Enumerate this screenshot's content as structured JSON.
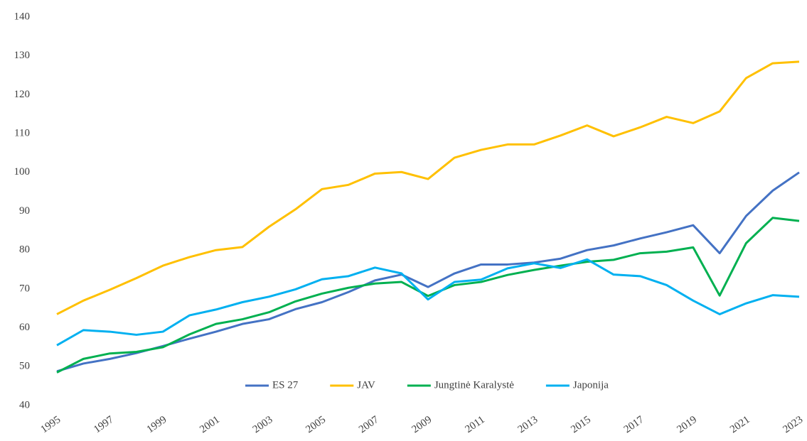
{
  "chart_data": {
    "type": "line",
    "x": [
      1995,
      1996,
      1997,
      1998,
      1999,
      2000,
      2001,
      2002,
      2003,
      2004,
      2005,
      2006,
      2007,
      2008,
      2009,
      2010,
      2011,
      2012,
      2013,
      2014,
      2015,
      2016,
      2017,
      2018,
      2019,
      2020,
      2021,
      2022,
      2023
    ],
    "series": [
      {
        "name": "ES 27",
        "color": "#4472c4",
        "values": [
          48.8,
          50.8,
          52,
          53.5,
          55.3,
          57.2,
          59,
          61,
          62.2,
          64.8,
          66.6,
          69.2,
          72.2,
          73.7,
          70.5,
          74,
          76.3,
          76.3,
          76.8,
          77.8,
          80,
          81.2,
          83,
          84.6,
          86.4,
          79.2,
          88.8,
          95.3,
          100
        ]
      },
      {
        "name": "JAV",
        "color": "#ffc000",
        "values": [
          63.5,
          67,
          69.8,
          72.8,
          76,
          78.2,
          80,
          80.8,
          86,
          90.5,
          95.7,
          96.8,
          99.7,
          100.1,
          98.3,
          103.8,
          105.8,
          107.2,
          107.2,
          109.5,
          112.1,
          109.3,
          111.6,
          114.3,
          112.7,
          115.7,
          124.3,
          128.1,
          128.5
        ]
      },
      {
        "name": "Jungtinė Karalystė",
        "color": "#00b050",
        "values": [
          48.5,
          52,
          53.4,
          53.8,
          55,
          58.3,
          61,
          62.2,
          64,
          66.8,
          68.8,
          70.3,
          71.4,
          71.8,
          68.2,
          71,
          71.8,
          73.6,
          74.9,
          76,
          77,
          77.5,
          79.2,
          79.6,
          80.7,
          68.3,
          81.8,
          88.3,
          87.5
        ]
      },
      {
        "name": "Japonija",
        "color": "#00b0f0",
        "values": [
          55.5,
          59.4,
          59,
          58.2,
          59,
          63.2,
          64.7,
          66.6,
          68,
          69.9,
          72.5,
          73.3,
          75.5,
          74,
          67.3,
          71.8,
          72.4,
          75.3,
          76.6,
          75.4,
          77.6,
          73.7,
          73.3,
          71,
          67,
          63.5,
          66.3,
          68.4,
          68
        ]
      }
    ],
    "xlim": [
      1995,
      2023
    ],
    "xticks": [
      1995,
      1997,
      1999,
      2001,
      2003,
      2005,
      2007,
      2009,
      2011,
      2013,
      2015,
      2017,
      2019,
      2021,
      2023
    ],
    "ylim": [
      40,
      140
    ],
    "yticks": [
      40,
      50,
      60,
      70,
      80,
      90,
      100,
      110,
      120,
      130,
      140
    ],
    "grid": false,
    "legend": "bottom"
  }
}
